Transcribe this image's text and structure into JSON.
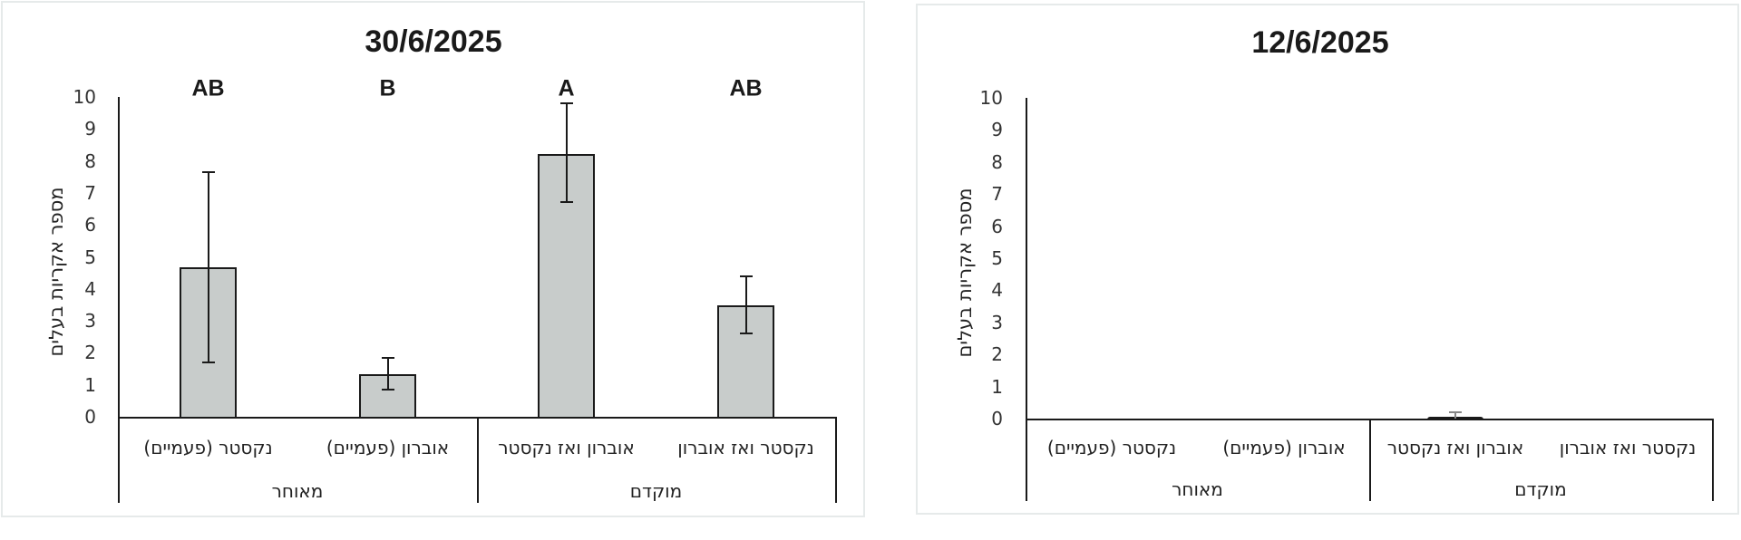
{
  "chart_data": [
    {
      "type": "bar",
      "title": "30/6/2025",
      "ylabel": "מספר אקריות בעלים",
      "xlabel": "",
      "ylim": [
        0,
        10
      ],
      "yticks": [
        "0",
        "1",
        "2",
        "3",
        "4",
        "5",
        "6",
        "7",
        "8",
        "9",
        "10"
      ],
      "grid": false,
      "categories": [
        "נקסטר (פעמיים)",
        "אוברון (פעמיים)",
        "אוברון ואז נקסטר",
        "נקסטר ואז אוברון"
      ],
      "groups": [
        {
          "label": "מאוחר",
          "categories": [
            "נקסטר (פעמיים)",
            "אוברון (פעמיים)"
          ]
        },
        {
          "label": "מוקדם",
          "categories": [
            "אוברון ואז נקסטר",
            "נקסטר ואז אוברון"
          ]
        }
      ],
      "values": [
        4.7,
        1.35,
        8.25,
        3.5
      ],
      "error_upper": [
        7.65,
        1.85,
        9.8,
        4.4
      ],
      "error_lower": [
        1.7,
        0.85,
        6.7,
        2.6
      ],
      "significance_letters": [
        "AB",
        "B",
        "A",
        "AB"
      ]
    },
    {
      "type": "bar",
      "title": "12/6/2025",
      "ylabel": "מספר אקריות בעלים",
      "xlabel": "",
      "ylim": [
        0,
        10
      ],
      "yticks": [
        "0",
        "1",
        "2",
        "3",
        "4",
        "5",
        "6",
        "7",
        "8",
        "9",
        "10"
      ],
      "grid": false,
      "categories": [
        "נקסטר (פעמיים)",
        "אוברון (פעמיים)",
        "אוברון ואז נקסטר",
        "נקסטר ואז אוברון"
      ],
      "groups": [
        {
          "label": "מאוחר",
          "categories": [
            "נקסטר (פעמיים)",
            "אוברון (פעמיים)"
          ]
        },
        {
          "label": "מוקדם",
          "categories": [
            "אוברון ואז נקסטר",
            "נקסטר ואז אוברון"
          ]
        }
      ],
      "values": [
        0,
        0,
        0.08,
        0
      ],
      "error_upper": [
        0,
        0,
        0.2,
        0
      ],
      "error_lower": [
        0,
        0,
        0,
        0
      ],
      "significance_letters": []
    }
  ],
  "colors": {
    "bar_fill": "#c8cccb",
    "bar_edge": "#1a1a1a",
    "panel_border": "#e6eaea"
  }
}
